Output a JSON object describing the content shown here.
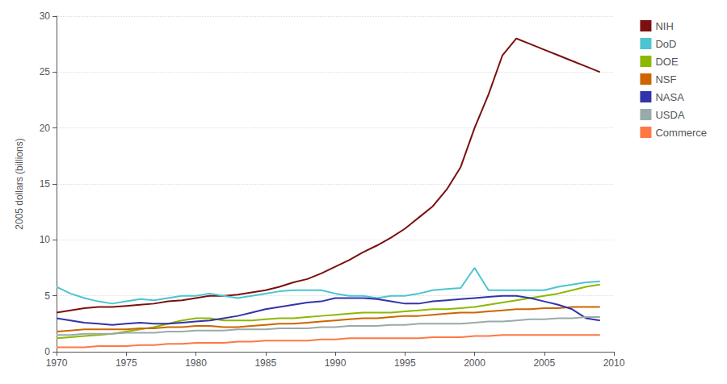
{
  "chart_data": {
    "type": "line",
    "ylabel": "2005 dollars (billions)",
    "x": [
      1970,
      1971,
      1972,
      1973,
      1974,
      1975,
      1976,
      1977,
      1978,
      1979,
      1980,
      1981,
      1982,
      1983,
      1984,
      1985,
      1986,
      1987,
      1988,
      1989,
      1990,
      1991,
      1992,
      1993,
      1994,
      1995,
      1996,
      1997,
      1998,
      1999,
      2000,
      2001,
      2002,
      2003,
      2004,
      2005,
      2006,
      2007,
      2008,
      2009
    ],
    "xlim": [
      1970,
      2010
    ],
    "xticks": [
      1970,
      1975,
      1980,
      1985,
      1990,
      1995,
      2000,
      2005,
      2010
    ],
    "ylim": [
      0,
      30
    ],
    "yticks": [
      0,
      5,
      10,
      15,
      20,
      25,
      30
    ],
    "grid": true,
    "legend": "upper right",
    "series": [
      {
        "name": "NIH",
        "color": "#7B1010",
        "values": [
          3.5,
          3.7,
          3.9,
          4.0,
          4.0,
          4.1,
          4.2,
          4.3,
          4.5,
          4.6,
          4.8,
          5.0,
          5.0,
          5.1,
          5.3,
          5.5,
          5.8,
          6.2,
          6.5,
          7.0,
          7.6,
          8.2,
          8.9,
          9.5,
          10.2,
          11.0,
          12.0,
          13.0,
          14.5,
          16.5,
          20.0,
          23.0,
          26.5,
          28.0,
          27.5,
          27.0,
          26.5,
          26.0,
          25.5,
          25.0
        ]
      },
      {
        "name": "DoD",
        "color": "#4DC4CF",
        "values": [
          5.8,
          5.2,
          4.8,
          4.5,
          4.3,
          4.5,
          4.7,
          4.6,
          4.8,
          5.0,
          5.0,
          5.2,
          5.0,
          4.8,
          5.0,
          5.2,
          5.4,
          5.5,
          5.5,
          5.5,
          5.2,
          5.0,
          5.0,
          4.8,
          5.0,
          5.0,
          5.2,
          5.5,
          5.6,
          5.7,
          7.5,
          5.5,
          5.5,
          5.5,
          5.5,
          5.5,
          5.8,
          6.0,
          6.2,
          6.3
        ]
      },
      {
        "name": "DOE",
        "color": "#8DB800",
        "values": [
          1.2,
          1.3,
          1.4,
          1.5,
          1.6,
          1.8,
          2.0,
          2.2,
          2.5,
          2.8,
          3.0,
          3.0,
          2.8,
          2.8,
          2.8,
          2.9,
          3.0,
          3.0,
          3.1,
          3.2,
          3.3,
          3.4,
          3.5,
          3.5,
          3.5,
          3.6,
          3.7,
          3.8,
          3.8,
          3.9,
          4.0,
          4.2,
          4.4,
          4.6,
          4.8,
          5.0,
          5.2,
          5.5,
          5.8,
          6.0
        ]
      },
      {
        "name": "NSF",
        "color": "#CC6600",
        "values": [
          1.8,
          1.9,
          2.0,
          2.0,
          2.0,
          2.0,
          2.1,
          2.1,
          2.2,
          2.2,
          2.3,
          2.3,
          2.2,
          2.2,
          2.3,
          2.4,
          2.5,
          2.5,
          2.6,
          2.7,
          2.8,
          2.9,
          3.0,
          3.0,
          3.1,
          3.2,
          3.2,
          3.3,
          3.4,
          3.5,
          3.5,
          3.6,
          3.7,
          3.8,
          3.8,
          3.9,
          3.9,
          4.0,
          4.0,
          4.0
        ]
      },
      {
        "name": "NASA",
        "color": "#3333AA",
        "values": [
          3.0,
          2.8,
          2.6,
          2.5,
          2.4,
          2.5,
          2.6,
          2.5,
          2.5,
          2.6,
          2.7,
          2.8,
          3.0,
          3.2,
          3.5,
          3.8,
          4.0,
          4.2,
          4.4,
          4.5,
          4.8,
          4.8,
          4.8,
          4.7,
          4.5,
          4.3,
          4.3,
          4.5,
          4.6,
          4.7,
          4.8,
          4.9,
          5.0,
          5.0,
          4.8,
          4.5,
          4.2,
          3.8,
          3.0,
          2.8
        ]
      },
      {
        "name": "USDA",
        "color": "#99AAAA",
        "values": [
          1.5,
          1.5,
          1.6,
          1.6,
          1.6,
          1.7,
          1.7,
          1.7,
          1.8,
          1.8,
          1.9,
          1.9,
          1.9,
          2.0,
          2.0,
          2.0,
          2.1,
          2.1,
          2.1,
          2.2,
          2.2,
          2.3,
          2.3,
          2.3,
          2.4,
          2.4,
          2.5,
          2.5,
          2.5,
          2.5,
          2.6,
          2.7,
          2.7,
          2.8,
          2.9,
          2.9,
          3.0,
          3.0,
          3.1,
          3.1
        ]
      },
      {
        "name": "Commerce",
        "color": "#FF7744",
        "values": [
          0.4,
          0.4,
          0.4,
          0.5,
          0.5,
          0.5,
          0.6,
          0.6,
          0.7,
          0.7,
          0.8,
          0.8,
          0.8,
          0.9,
          0.9,
          1.0,
          1.0,
          1.0,
          1.0,
          1.1,
          1.1,
          1.2,
          1.2,
          1.2,
          1.2,
          1.2,
          1.2,
          1.3,
          1.3,
          1.3,
          1.4,
          1.4,
          1.5,
          1.5,
          1.5,
          1.5,
          1.5,
          1.5,
          1.5,
          1.5
        ]
      }
    ]
  }
}
